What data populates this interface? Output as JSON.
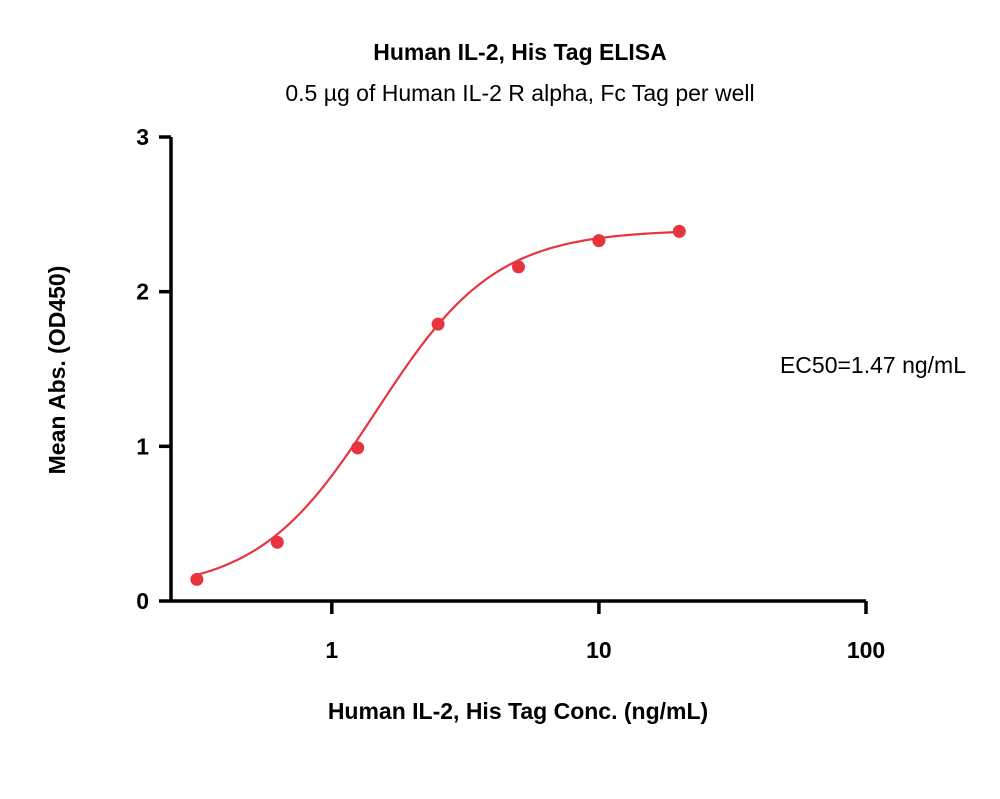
{
  "chart_data": {
    "type": "scatter",
    "title": "Human IL-2, His Tag ELISA",
    "subtitle": "0.5 µg of Human IL-2 R alpha, Fc Tag per well",
    "xlabel": "Human IL-2, His Tag Conc. (ng/mL)",
    "ylabel": "Mean Abs. (OD450)",
    "x_scale": "log",
    "xlim": [
      0.25,
      100
    ],
    "ylim": [
      0,
      3
    ],
    "x_ticks": [
      1,
      10,
      100
    ],
    "x_tick_labels": [
      "1",
      "10",
      "100"
    ],
    "y_ticks": [
      0,
      1,
      2,
      3
    ],
    "y_tick_labels": [
      "0",
      "1",
      "2",
      "3"
    ],
    "annotation": "EC50=1.47 ng/mL",
    "color": "#e8343f",
    "grid": false,
    "series": [
      {
        "x": [
          0.3125,
          0.625,
          1.25,
          2.5,
          5,
          10,
          20
        ],
        "y": [
          0.14,
          0.38,
          0.99,
          1.79,
          2.16,
          2.33,
          2.39
        ]
      }
    ],
    "fit": {
      "model": "4PL",
      "bottom": 0.06,
      "top": 2.4,
      "ec50": 1.47,
      "hill": 1.95
    }
  }
}
